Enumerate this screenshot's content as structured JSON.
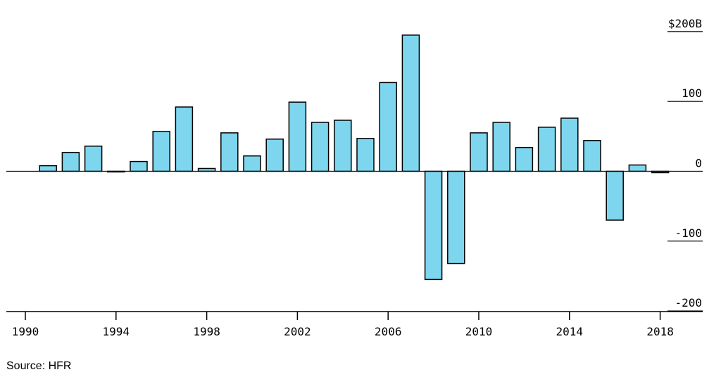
{
  "chart_data": {
    "type": "bar",
    "title": "",
    "xlabel": "",
    "ylabel": "",
    "x": [
      1990,
      1991,
      1992,
      1993,
      1994,
      1995,
      1996,
      1997,
      1998,
      1999,
      2000,
      2001,
      2002,
      2003,
      2004,
      2005,
      2006,
      2007,
      2008,
      2009,
      2010,
      2011,
      2012,
      2013,
      2014,
      2015,
      2016,
      2017,
      2018
    ],
    "values": [
      null,
      8,
      27,
      36,
      -1,
      14,
      57,
      92,
      4,
      55,
      22,
      46,
      99,
      70,
      73,
      47,
      127,
      195,
      -155,
      -132,
      55,
      70,
      34,
      63,
      76,
      44,
      -70,
      9,
      -2
    ],
    "ylim": [
      -200,
      200
    ],
    "y_ticks": [
      200,
      100,
      0,
      -100,
      -200
    ],
    "y_tick_labels": [
      "$200B",
      "100",
      "0",
      "-100",
      "-200"
    ],
    "x_ticks": [
      1990,
      1994,
      1998,
      2002,
      2006,
      2010,
      2014,
      2018
    ],
    "x_tick_labels": [
      "1990",
      "1994",
      "1998",
      "2002",
      "2006",
      "2010",
      "2014",
      "2018"
    ],
    "grid": false,
    "bar_color": "#7dd6ee",
    "bar_edge_color": "#000000",
    "axis_color": "#000000"
  },
  "source": "Source: HFR"
}
